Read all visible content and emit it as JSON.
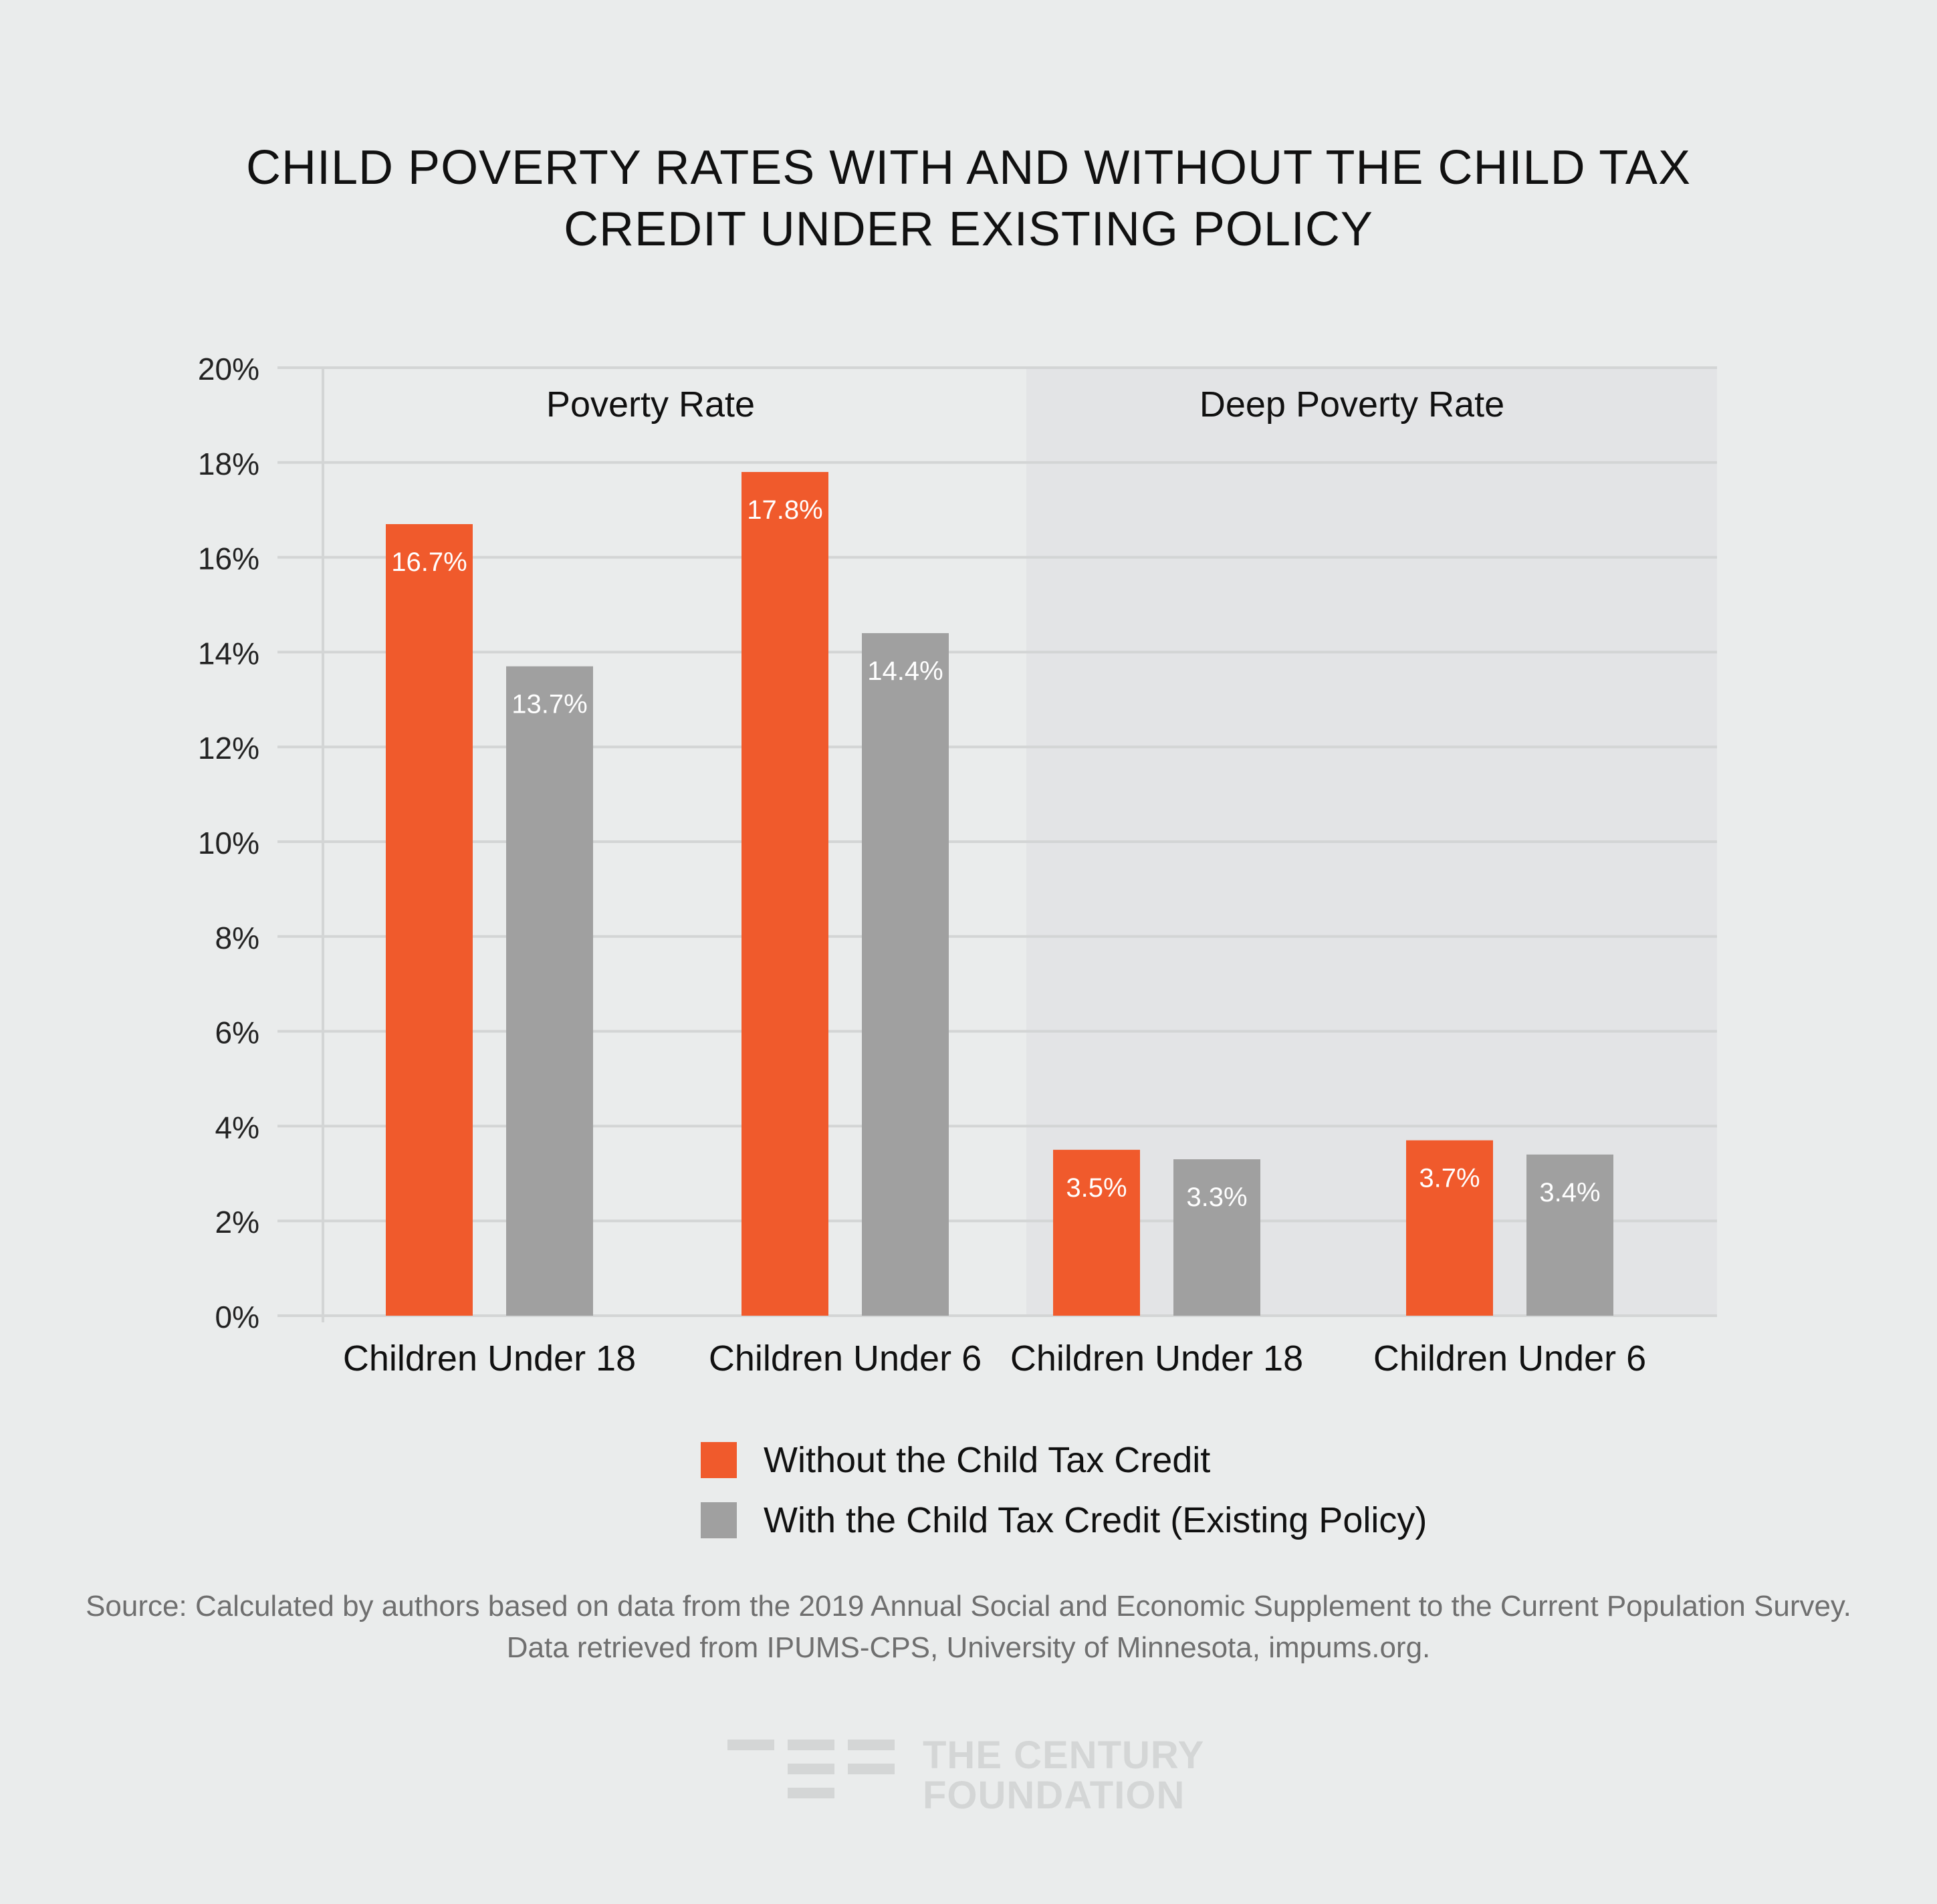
{
  "chart_data": {
    "type": "bar",
    "title": [
      "CHILD POVERTY RATES WITH AND WITHOUT THE CHILD TAX",
      "CREDIT UNDER EXISTING POLICY"
    ],
    "panels": [
      {
        "label": "Poverty Rate",
        "shaded": false
      },
      {
        "label": "Deep Poverty Rate",
        "shaded": true
      }
    ],
    "categories": [
      "Children Under 18",
      "Children Under 6",
      "Children Under 18",
      "Children Under 6"
    ],
    "category_panel": [
      0,
      0,
      1,
      1
    ],
    "series": [
      {
        "name": "Without the Child Tax Credit",
        "color": "#f05a2c",
        "values": [
          16.7,
          17.8,
          3.5,
          3.7
        ],
        "labels": [
          "16.7%",
          "17.8%",
          "3.5%",
          "3.7%"
        ]
      },
      {
        "name": "With the Child Tax Credit (Existing Policy)",
        "color": "#a0a0a0",
        "values": [
          13.7,
          14.4,
          3.3,
          3.4
        ],
        "labels": [
          "13.7%",
          "14.4%",
          "3.3%",
          "3.4%"
        ]
      }
    ],
    "ylim": [
      0,
      20
    ],
    "yticks": [
      "0%",
      "2%",
      "4%",
      "6%",
      "8%",
      "10%",
      "12%",
      "14%",
      "16%",
      "18%",
      "20%"
    ],
    "grid": true,
    "legend_position": "bottom"
  },
  "legend": {
    "items": [
      {
        "label": "Without the Child Tax Credit",
        "color": "#f05a2c"
      },
      {
        "label": "With the Child Tax Credit (Existing Policy)",
        "color": "#a0a0a0"
      }
    ]
  },
  "source": {
    "line1": "Source: Calculated by authors based on data from the 2019 Annual Social and Economic Supplement to the Current Population Survey.",
    "line2": "Data retrieved from IPUMS-CPS, University of Minnesota, impums.org."
  },
  "logo": {
    "line1": "THE CENTURY",
    "line2": "FOUNDATION"
  }
}
